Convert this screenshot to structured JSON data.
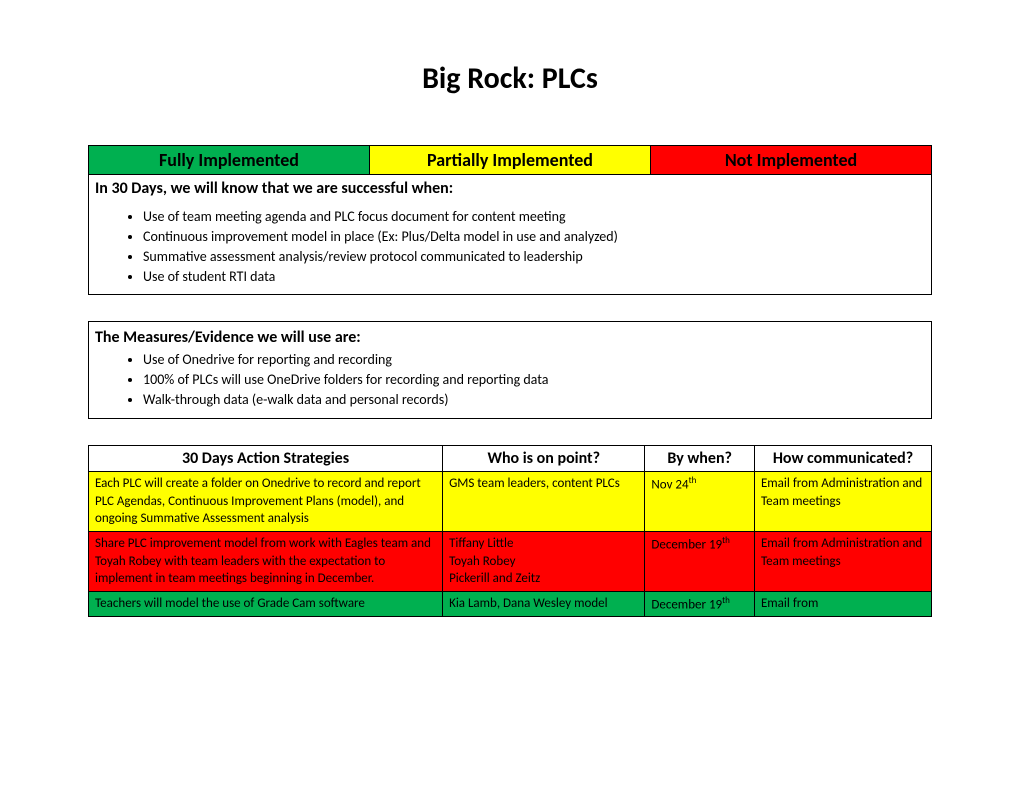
{
  "title": "Big Rock: PLCs",
  "colors": {
    "green": "#00b050",
    "yellow": "#ffff00",
    "red": "#ff0000",
    "white": "#ffffff",
    "black": "#000000"
  },
  "status_legend": {
    "full": {
      "label": "Fully Implemented",
      "bg": "#00b050"
    },
    "partial": {
      "label": "Partially Implemented",
      "bg": "#ffff00"
    },
    "not": {
      "label": "Not Implemented",
      "bg": "#ff0000"
    }
  },
  "success": {
    "heading": "In 30 Days, we will know that we are successful when:",
    "bullets": [
      "Use of team meeting agenda and PLC focus document for content meeting",
      "Continuous improvement model in place (Ex: Plus/Delta model in use and analyzed)",
      "Summative assessment analysis/review protocol communicated to leadership",
      "Use of student RTI data"
    ]
  },
  "measures": {
    "heading": "The Measures/Evidence we will use are:",
    "bullets": [
      "Use of Onedrive for reporting and recording",
      "100% of PLCs will use OneDrive folders for recording and reporting data",
      "Walk-through data (e-walk data and personal records)"
    ]
  },
  "action_table": {
    "columns": {
      "strategy": "30 Days Action Strategies",
      "who": "Who is on point?",
      "when": "By when?",
      "how": "How communicated?"
    },
    "rows": [
      {
        "bg": "#ffff00",
        "strategy": "Each PLC will create a folder on Onedrive to record and report PLC Agendas, Continuous Improvement Plans (model), and ongoing Summative Assessment analysis",
        "who": "GMS team leaders, content PLCs",
        "when_text": "Nov 24",
        "when_suffix": "th",
        "how": "Email from Administration and Team meetings"
      },
      {
        "bg": "#ff0000",
        "strategy": "Share PLC improvement model from work with Eagles team and Toyah Robey with team leaders with the expectation to implement in team meetings beginning in December.",
        "who": "Tiffany Little\nToyah Robey\nPickerill and Zeitz",
        "when_text": "December 19",
        "when_suffix": "th",
        "how": "Email from Administration and Team meetings"
      },
      {
        "bg": "#00b050",
        "strategy": "Teachers will model the use of Grade Cam software",
        "who": "Kia Lamb, Dana Wesley model",
        "when_text": "December 19",
        "when_suffix": "th",
        "how": "Email from"
      }
    ]
  }
}
